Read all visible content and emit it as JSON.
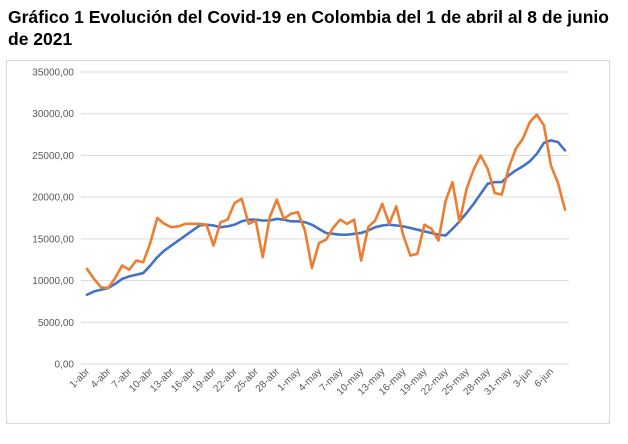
{
  "title": "Gráfico 1 Evolución del Covid-19 en Colombia del 1 de abril al 8 de junio de 2021",
  "chart_data": {
    "type": "line",
    "title": "Gráfico 1 Evolución del Covid-19 en Colombia del 1 de abril al 8 de junio de 2021",
    "xlabel": "",
    "ylabel": "",
    "ylim": [
      0,
      35000
    ],
    "yticks": [
      "0,00",
      "5000,00",
      "10000,00",
      "15000,00",
      "20000,00",
      "25000,00",
      "30000,00",
      "35000,00"
    ],
    "ytick_values": [
      0,
      5000,
      10000,
      15000,
      20000,
      25000,
      30000,
      35000
    ],
    "grid": true,
    "legend": "none",
    "x": [
      "1-abr",
      "2-abr",
      "3-abr",
      "4-abr",
      "5-abr",
      "6-abr",
      "7-abr",
      "8-abr",
      "9-abr",
      "10-abr",
      "11-abr",
      "12-abr",
      "13-abr",
      "14-abr",
      "15-abr",
      "16-abr",
      "17-abr",
      "18-abr",
      "19-abr",
      "20-abr",
      "21-abr",
      "22-abr",
      "23-abr",
      "24-abr",
      "25-abr",
      "26-abr",
      "27-abr",
      "28-abr",
      "29-abr",
      "30-abr",
      "1-may",
      "2-may",
      "3-may",
      "4-may",
      "5-may",
      "6-may",
      "7-may",
      "8-may",
      "9-may",
      "10-may",
      "11-may",
      "12-may",
      "13-may",
      "14-may",
      "15-may",
      "16-may",
      "17-may",
      "18-may",
      "19-may",
      "20-may",
      "21-may",
      "22-may",
      "23-may",
      "24-may",
      "25-may",
      "26-may",
      "27-may",
      "28-may",
      "29-may",
      "30-may",
      "31-may",
      "1-jun",
      "2-jun",
      "3-jun",
      "4-jun",
      "5-jun",
      "6-jun",
      "7-jun",
      "8-jun"
    ],
    "xtick_labels": [
      "1-abr",
      "4-abr",
      "7-abr",
      "10-abr",
      "13-abr",
      "16-abr",
      "19-abr",
      "22-abr",
      "25-abr",
      "28-abr",
      "1-may",
      "4-may",
      "7-may",
      "10-may",
      "13-may",
      "16-may",
      "19-may",
      "22-may",
      "25-may",
      "28-may",
      "31-may",
      "3-jun",
      "6-jun"
    ],
    "series": [
      {
        "color": "#4472c4",
        "values": [
          8300,
          8700,
          8900,
          9100,
          9600,
          10200,
          10500,
          10700,
          10900,
          11800,
          12800,
          13600,
          14200,
          14800,
          15400,
          16000,
          16600,
          16700,
          16600,
          16400,
          16500,
          16700,
          17100,
          17300,
          17300,
          17200,
          17200,
          17400,
          17300,
          17100,
          17100,
          17000,
          16700,
          16200,
          15700,
          15600,
          15500,
          15500,
          15600,
          15700,
          16000,
          16400,
          16600,
          16700,
          16600,
          16500,
          16300,
          16100,
          15900,
          15700,
          15500,
          15400,
          16200,
          17100,
          18100,
          19200,
          20400,
          21600,
          21800,
          21800,
          22600,
          23200,
          23700,
          24300,
          25200,
          26500,
          26800,
          26600,
          25600
        ]
      },
      {
        "color": "#ed7d31",
        "values": [
          11400,
          10200,
          9200,
          9100,
          10300,
          11800,
          11300,
          12400,
          12200,
          14500,
          17500,
          16800,
          16400,
          16500,
          16800,
          16800,
          16800,
          16700,
          14200,
          17000,
          17300,
          19300,
          19800,
          16800,
          17200,
          12800,
          17600,
          19700,
          17400,
          18000,
          18200,
          16000,
          11500,
          14500,
          14900,
          16300,
          17300,
          16800,
          17300,
          12400,
          16400,
          17200,
          19200,
          16800,
          18900,
          15400,
          13000,
          13200,
          16700,
          16200,
          14800,
          19500,
          21800,
          17000,
          21000,
          23300,
          25000,
          23400,
          20500,
          20300,
          23500,
          25800,
          27000,
          29000,
          29900,
          28600,
          23800,
          21700,
          18500
        ]
      }
    ]
  }
}
